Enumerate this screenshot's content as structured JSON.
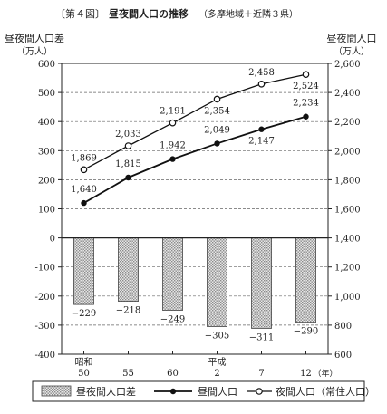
{
  "chart_data": {
    "type": "bar+line",
    "title_prefix": "〔第４図〕",
    "title": "昼夜間人口の推移",
    "subtitle": "（多摩地域＋近隣３県）",
    "left_axis": {
      "label_line1": "昼夜間人口差",
      "label_line2": "（万人）",
      "ylim": [
        -400,
        600
      ],
      "ticks": [
        "-400",
        "-300",
        "-200",
        "-100",
        "0",
        "100",
        "200",
        "300",
        "400",
        "500",
        "600"
      ]
    },
    "right_axis": {
      "label_line1": "昼夜間人口",
      "label_line2": "（万人）",
      "ylim": [
        600,
        2600
      ],
      "ticks": [
        "600",
        "800",
        "1,000",
        "1,200",
        "1,400",
        "1,600",
        "1,800",
        "2,000",
        "2,200",
        "2,400",
        "2,600"
      ]
    },
    "x_era_labels": [
      {
        "index": 0,
        "text": "昭和"
      },
      {
        "index": 3,
        "text": "平成"
      }
    ],
    "categories": [
      "50",
      "55",
      "60",
      "2",
      "7",
      "12"
    ],
    "x_unit": "（年）",
    "grid": "horizontal-dashed",
    "series": [
      {
        "name": "昼夜間人口差",
        "kind": "bar",
        "axis": "left",
        "values": [
          -229,
          -218,
          -249,
          -305,
          -311,
          -290
        ],
        "labels": [
          "−229",
          "−218",
          "−249",
          "−305",
          "−311",
          "−290"
        ]
      },
      {
        "name": "昼間人口",
        "kind": "line",
        "marker": "filled-circle",
        "axis": "right",
        "values": [
          1640,
          1815,
          1942,
          2049,
          2147,
          2234
        ],
        "labels": [
          "1,640",
          "1,815",
          "1,942",
          "2,049",
          "2,147",
          "2,234"
        ]
      },
      {
        "name": "夜間人口（常住人口）",
        "kind": "line",
        "marker": "open-circle",
        "axis": "right",
        "values": [
          1869,
          2033,
          2191,
          2354,
          2458,
          2524
        ],
        "labels": [
          "1,869",
          "2,033",
          "2,191",
          "2,354",
          "2,458",
          "2,524"
        ]
      }
    ],
    "legend_position": "bottom",
    "colors": {
      "line": "#111111",
      "bar_fill": "#c8c8c8",
      "bar_stroke": "#444444",
      "grid": "#666666"
    }
  }
}
